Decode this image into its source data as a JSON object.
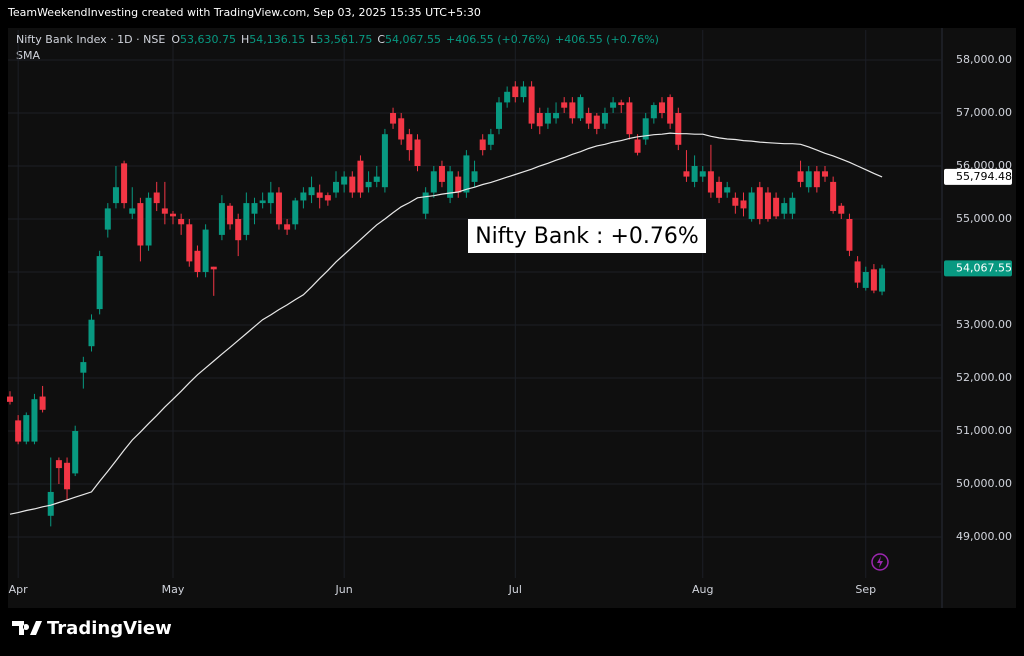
{
  "header": "TeamWeekendInvesting created with TradingView.com, Sep 03, 2025 15:35 UTC+5:30",
  "watermark": "TradingView",
  "chart_data": {
    "type": "candlestick",
    "legend": {
      "symbol": "Nifty Bank Index · 1D · NSE",
      "items": [
        {
          "label": "O",
          "value": "53,630.75"
        },
        {
          "label": "H",
          "value": "54,136.15"
        },
        {
          "label": "L",
          "value": "53,561.75"
        },
        {
          "label": "C",
          "value": "54,067.55"
        }
      ],
      "change": [
        "+406.55 (+0.76%)",
        "+406.55 (+0.76%)"
      ]
    },
    "annotation": "Nifty Bank : +0.76%",
    "up_color": "#089981",
    "down_color": "#f23645",
    "close_label": "54,067.55",
    "categories": [
      null,
      "Apr",
      null,
      null,
      null,
      null,
      null,
      null,
      null,
      null,
      null,
      null,
      null,
      null,
      null,
      null,
      null,
      null,
      null,
      null,
      "May",
      null,
      null,
      null,
      null,
      null,
      null,
      null,
      null,
      null,
      null,
      null,
      null,
      null,
      null,
      null,
      null,
      null,
      null,
      null,
      null,
      "Jun",
      null,
      null,
      null,
      null,
      null,
      null,
      null,
      null,
      null,
      null,
      null,
      null,
      null,
      null,
      null,
      null,
      null,
      null,
      null,
      null,
      "Jul",
      null,
      null,
      null,
      null,
      null,
      null,
      null,
      null,
      null,
      null,
      null,
      null,
      null,
      null,
      null,
      null,
      null,
      null,
      null,
      null,
      null,
      null,
      "Aug",
      null,
      null,
      null,
      null,
      null,
      null,
      null,
      null,
      null,
      null,
      null,
      null,
      null,
      null,
      null,
      null,
      null,
      null,
      null,
      "Sep",
      null,
      null
    ],
    "open": [
      51650,
      51200,
      50800,
      50800,
      51650,
      49400,
      50450,
      50400,
      50200,
      52100,
      52600,
      53300,
      54800,
      55300,
      56050,
      55100,
      55300,
      54500,
      55500,
      55200,
      55100,
      55000,
      54900,
      54400,
      54000,
      54100,
      54700,
      55250,
      55000,
      54700,
      55100,
      55300,
      55300,
      55500,
      54900,
      54900,
      55350,
      55450,
      55500,
      55450,
      55500,
      55650,
      55800,
      56100,
      55600,
      55700,
      55600,
      57000,
      56900,
      56600,
      56500,
      55100,
      55500,
      56000,
      55400,
      55800,
      55500,
      55700,
      56500,
      56400,
      56700,
      57200,
      57500,
      57300,
      57500,
      57000,
      56800,
      56900,
      57200,
      57200,
      56900,
      57000,
      56950,
      56800,
      57100,
      57200,
      57200,
      56500,
      56500,
      56900,
      57200,
      57300,
      57000,
      55900,
      55700,
      55800,
      55900,
      55700,
      55500,
      55400,
      55350,
      55000,
      55600,
      55500,
      55400,
      55100,
      55100,
      55900,
      55600,
      55900,
      55900,
      55700,
      55250,
      55000,
      54200,
      53700,
      54050,
      53630.75
    ],
    "high": [
      51750,
      51300,
      51350,
      51700,
      51850,
      50500,
      50500,
      50500,
      51100,
      52400,
      53200,
      54400,
      55300,
      56000,
      56100,
      55600,
      55400,
      55500,
      55700,
      55700,
      55150,
      55100,
      55000,
      54500,
      54900,
      54100,
      55450,
      55300,
      55100,
      55500,
      55400,
      55500,
      55700,
      55600,
      55000,
      55400,
      55600,
      55800,
      55650,
      55500,
      55900,
      55900,
      55900,
      56200,
      55900,
      56000,
      56700,
      57100,
      57000,
      56700,
      56600,
      55600,
      56000,
      56100,
      56000,
      55900,
      56300,
      56100,
      56600,
      56700,
      57300,
      57500,
      57600,
      57600,
      57600,
      57100,
      57100,
      57200,
      57300,
      57300,
      57350,
      57100,
      57000,
      57100,
      57300,
      57250,
      57300,
      56600,
      57000,
      57200,
      57300,
      57350,
      57100,
      56300,
      56200,
      56000,
      56400,
      55800,
      55700,
      55500,
      55500,
      55600,
      55700,
      55600,
      55500,
      55400,
      55500,
      56100,
      56000,
      56000,
      56000,
      55800,
      55300,
      55100,
      54300,
      54100,
      54150,
      54136.15
    ],
    "low": [
      51500,
      50750,
      50750,
      50750,
      51350,
      49200,
      50000,
      49700,
      50150,
      51800,
      52500,
      53200,
      54650,
      55200,
      55200,
      55000,
      54200,
      54400,
      55150,
      54900,
      54900,
      54700,
      54100,
      53900,
      53900,
      53550,
      54600,
      54800,
      54300,
      54600,
      54900,
      55200,
      55100,
      54800,
      54700,
      54800,
      55200,
      55300,
      55200,
      55250,
      55400,
      55500,
      55400,
      55400,
      55500,
      55600,
      55500,
      56700,
      56400,
      56100,
      55900,
      55000,
      55400,
      55600,
      55300,
      55400,
      55400,
      55600,
      56200,
      56300,
      56600,
      57100,
      57200,
      57200,
      56700,
      56600,
      56700,
      56800,
      57000,
      56800,
      56850,
      56700,
      56600,
      56700,
      57000,
      57000,
      56500,
      56200,
      56400,
      56800,
      56900,
      56700,
      56300,
      55700,
      55600,
      55700,
      55400,
      55300,
      55400,
      55100,
      55050,
      54950,
      54900,
      54950,
      55000,
      55000,
      55000,
      55600,
      55500,
      55500,
      55700,
      55100,
      55000,
      54300,
      53700,
      53650,
      53600,
      53561.75
    ],
    "close": [
      51550,
      50800,
      51300,
      51600,
      51400,
      49850,
      50300,
      49900,
      51000,
      52300,
      53100,
      54300,
      55200,
      55600,
      55300,
      55200,
      54500,
      55400,
      55300,
      55100,
      55050,
      54900,
      54200,
      54000,
      54800,
      54050,
      55300,
      54900,
      54600,
      55300,
      55300,
      55350,
      55500,
      54900,
      54800,
      55350,
      55500,
      55600,
      55400,
      55350,
      55700,
      55800,
      55500,
      55500,
      55700,
      55800,
      56600,
      56800,
      56500,
      56300,
      56000,
      55500,
      55900,
      55700,
      55900,
      55500,
      56200,
      55900,
      56300,
      56600,
      57200,
      57400,
      57300,
      57500,
      56800,
      56750,
      57000,
      57000,
      57100,
      56900,
      57300,
      56800,
      56700,
      57000,
      57200,
      57150,
      56600,
      56250,
      56900,
      57150,
      57000,
      56800,
      56400,
      55800,
      56000,
      55900,
      55500,
      55400,
      55600,
      55250,
      55200,
      55500,
      55000,
      55000,
      55050,
      55300,
      55400,
      55700,
      55900,
      55600,
      55800,
      55150,
      55100,
      54400,
      53800,
      54000,
      53650,
      54067.55
    ],
    "series": [
      {
        "name": "SMA",
        "color": "#e8e8e8",
        "last_label": "55,794.48",
        "values": [
          49430,
          49460,
          49500,
          49530,
          49570,
          49600,
          49650,
          49700,
          49750,
          49800,
          49850,
          50050,
          50240,
          50440,
          50640,
          50830,
          50980,
          51140,
          51290,
          51450,
          51600,
          51750,
          51910,
          52060,
          52190,
          52320,
          52450,
          52580,
          52710,
          52840,
          52970,
          53100,
          53190,
          53290,
          53380,
          53480,
          53570,
          53720,
          53880,
          54030,
          54190,
          54330,
          54470,
          54610,
          54750,
          54890,
          55000,
          55120,
          55230,
          55310,
          55400,
          55420,
          55440,
          55470,
          55490,
          55510,
          55560,
          55600,
          55650,
          55690,
          55740,
          55790,
          55840,
          55890,
          55940,
          56000,
          56050,
          56110,
          56160,
          56220,
          56270,
          56330,
          56380,
          56410,
          56450,
          56480,
          56520,
          56550,
          56570,
          56590,
          56600,
          56620,
          56610,
          56610,
          56600,
          56600,
          56560,
          56530,
          56510,
          56500,
          56480,
          56470,
          56450,
          56440,
          56430,
          56420,
          56420,
          56410,
          56360,
          56300,
          56240,
          56190,
          56130,
          56070,
          56000,
          55930,
          55860,
          55794.48
        ]
      }
    ],
    "ylim": [
      48415,
      58566
    ],
    "yticks": [
      {
        "value": 49000,
        "label": "49,000.00"
      },
      {
        "value": 50000,
        "label": "50,000.00"
      },
      {
        "value": 51000,
        "label": "51,000.00"
      },
      {
        "value": 52000,
        "label": "52,000.00"
      },
      {
        "value": 53000,
        "label": "53,000.00"
      },
      {
        "value": 54000,
        "label": "54,000.00"
      },
      {
        "value": 55000,
        "label": "55,000.00"
      },
      {
        "value": 56000,
        "label": "56,000.00"
      },
      {
        "value": 57000,
        "label": "57,000.00"
      },
      {
        "value": 58000,
        "label": "58,000.00"
      }
    ],
    "grid": true
  }
}
